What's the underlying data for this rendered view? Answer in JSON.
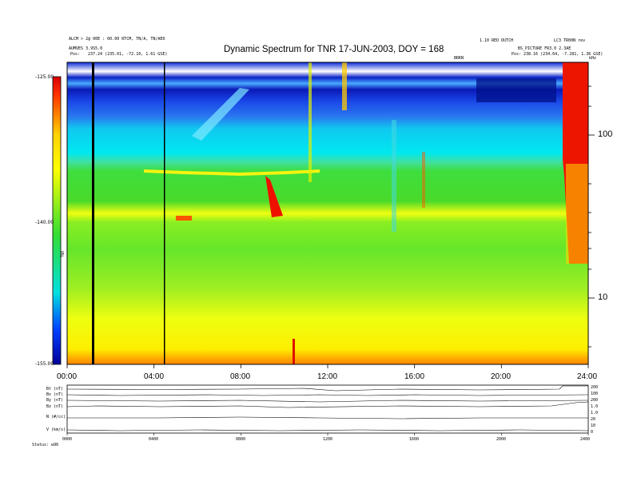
{
  "header": {
    "title": "Dynamic Spectrum for TNR 17-JUN-2003, DOY = 168",
    "left_line1": "ALCM > 2@ 00E : 00.00 RTCM, TN/A, TN/AE0",
    "left_line2": "AUMVES 3.9S5.0",
    "left_pos_label": "Pos:",
    "left_pos_value": "237.24 (235.01, -72.10, 1.61 GSE)",
    "right_top_a": "1.10 RED DUTCH",
    "right_top_b": "LC3 TR00N rev",
    "right_line2": "BS_PICTURE FR3.0 2.3AE",
    "right_pos_label": "Pos:",
    "right_pos_value": "238.16 (234.64, -7.281, 1.36 GSE)",
    "small_mark": "BRKN"
  },
  "colorbar": {
    "label": "TNR",
    "tick_labels": [
      "-125.00",
      "-140.00",
      "-155.00"
    ],
    "colors": [
      "#d80000",
      "#ff6a00",
      "#ffff00",
      "#44dd22",
      "#00e0e0",
      "#0040ff",
      "#00009a"
    ]
  },
  "chart_data": {
    "type": "heatmap",
    "title": "Dynamic Spectrum for TNR 17-JUN-2003, DOY = 168",
    "x_tick_labels": [
      "00:00",
      "04:00",
      "08:00",
      "12:00",
      "16:00",
      "20:00",
      "24:00"
    ],
    "xlim": [
      0,
      24
    ],
    "y_scale": "log",
    "y_tick_labels": [
      "100",
      "10"
    ],
    "y_ticks": [
      100,
      10
    ],
    "y_unit": "kHz",
    "colorbar_range": [
      -155,
      -125
    ],
    "features": [
      {
        "name": "low band",
        "level": "yellow"
      },
      {
        "name": "middle band",
        "level": "green"
      },
      {
        "name": "upper band",
        "level": "cyan"
      },
      {
        "name": "top band",
        "level": "blue"
      },
      {
        "name": "burst near 24:00",
        "level": "red"
      }
    ],
    "marked_times": [
      1.2,
      4.5
    ]
  },
  "panels": {
    "row_labels": [
      "Bt (nT)",
      "Bx (nT)",
      "By (nT)",
      "Bz (nT)",
      "N (#/cc)",
      "V (km/s)"
    ],
    "right_labels": [
      "200",
      "100",
      "200",
      "1.0",
      "1.0",
      "20",
      "10",
      "0"
    ],
    "x_tick_labels": [
      "0000",
      "0400",
      "0800",
      "1200",
      "1600",
      "2000",
      "2400"
    ],
    "footer": "Status: w96"
  }
}
